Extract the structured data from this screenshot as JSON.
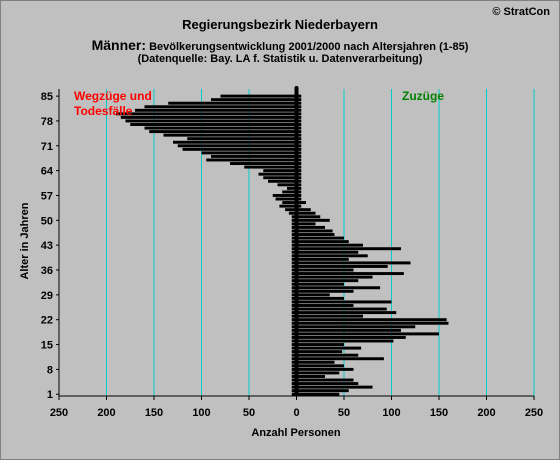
{
  "header": {
    "title": "Regierungsbezirk Niederbayern",
    "subtitle_prefix": "Männer:",
    "subtitle_rest": " Bevölkerungsentwicklung 2001/2000 nach Altersjahren (1-85)",
    "source": "(Datenquelle: Bay. LA f. Statistik u. Datenverarbeitung)",
    "copyright": "© StratCon"
  },
  "annotations": {
    "left": "Wegzüge und Todesfälle",
    "right": "Zuzüge"
  },
  "colors": {
    "background": "#c0c0c0",
    "bars": "#000000",
    "gridlines": "#00cccc",
    "left_annotation": "#ff0000",
    "right_annotation": "#008000"
  },
  "chart_data": {
    "type": "bar",
    "orientation": "horizontal",
    "xlabel": "Anzahl Personen",
    "ylabel": "Alter in Jahren",
    "xlim": [
      -250,
      250
    ],
    "x_tick_values": [
      -250,
      -200,
      -150,
      -100,
      -50,
      0,
      50,
      100,
      150,
      200,
      250
    ],
    "x_tick_labels": [
      "250",
      "200",
      "150",
      "100",
      "50",
      "0",
      "50",
      "100",
      "150",
      "200",
      "250"
    ],
    "ylim": [
      1,
      85
    ],
    "y_tick_labels": [
      "1",
      "8",
      "15",
      "22",
      "29",
      "36",
      "43",
      "50",
      "57",
      "64",
      "71",
      "78",
      "85"
    ],
    "grid": "vertical lines",
    "categories": [
      1,
      2,
      3,
      4,
      5,
      6,
      7,
      8,
      9,
      10,
      11,
      12,
      13,
      14,
      15,
      16,
      17,
      18,
      19,
      20,
      21,
      22,
      23,
      24,
      25,
      26,
      27,
      28,
      29,
      30,
      31,
      32,
      33,
      34,
      35,
      36,
      37,
      38,
      39,
      40,
      41,
      42,
      43,
      44,
      45,
      46,
      47,
      48,
      49,
      50,
      51,
      52,
      53,
      54,
      55,
      56,
      57,
      58,
      59,
      60,
      61,
      62,
      63,
      64,
      65,
      66,
      67,
      68,
      69,
      70,
      71,
      72,
      73,
      74,
      75,
      76,
      77,
      78,
      79,
      80,
      81,
      82,
      83,
      84,
      85
    ],
    "series": [
      {
        "values": [
          45,
          55,
          80,
          65,
          60,
          30,
          45,
          60,
          50,
          40,
          92,
          65,
          48,
          68,
          50,
          102,
          115,
          150,
          110,
          125,
          160,
          158,
          70,
          105,
          95,
          60,
          100,
          50,
          35,
          60,
          88,
          50,
          65,
          80,
          113,
          60,
          96,
          120,
          55,
          75,
          65,
          110,
          70,
          55,
          50,
          40,
          38,
          30,
          20,
          35,
          25,
          20,
          15,
          5,
          10,
          5,
          5,
          5,
          5,
          5,
          5,
          5,
          5,
          5,
          5,
          5,
          5,
          5,
          5,
          5,
          5,
          5,
          5,
          5,
          5,
          5,
          5,
          5,
          5,
          5,
          5,
          5,
          5,
          5,
          5
        ]
      },
      {
        "values": [
          -5,
          -5,
          -5,
          -5,
          -5,
          -5,
          -5,
          -5,
          -5,
          -5,
          -5,
          -5,
          -5,
          -5,
          -5,
          -5,
          -5,
          -5,
          -5,
          -5,
          -5,
          -5,
          -5,
          -5,
          -5,
          -5,
          -5,
          -5,
          -5,
          -5,
          -5,
          -5,
          -5,
          -5,
          -5,
          -5,
          -5,
          -5,
          -5,
          -5,
          -5,
          -5,
          -5,
          -5,
          -5,
          -5,
          -5,
          -5,
          -5,
          -5,
          -5,
          -8,
          -12,
          -18,
          -15,
          -22,
          -25,
          -15,
          -10,
          -20,
          -30,
          -35,
          -40,
          -35,
          -55,
          -70,
          -95,
          -90,
          -100,
          -120,
          -125,
          -130,
          -115,
          -140,
          -155,
          -160,
          -175,
          -180,
          -185,
          -190,
          -170,
          -160,
          -135,
          -90,
          -80
        ]
      }
    ]
  }
}
